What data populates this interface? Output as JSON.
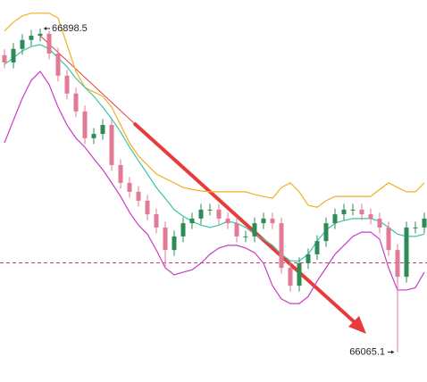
{
  "chart_data": {
    "type": "candlestick",
    "ylim": [
      65988,
      66972
    ],
    "up_color": "#2e8b57",
    "down_color": "#e07a95",
    "open": [
      66830,
      66811,
      66846,
      66869,
      66880,
      66885,
      66834,
      66777,
      66731,
      66685,
      66616,
      66627,
      66650,
      66547,
      66501,
      66478,
      66455,
      66420,
      66386,
      66328,
      66363,
      66397,
      66409,
      66432,
      66432,
      66409,
      66397,
      66363,
      66363,
      66397,
      66409,
      66397,
      66282,
      66236,
      66294,
      66317,
      66351,
      66397,
      66420,
      66432,
      66432,
      66420,
      66409,
      66386,
      66328,
      66259,
      66386,
      66386
    ],
    "high": [
      66845,
      66861,
      66884,
      66895,
      66898.5,
      66893,
      66849,
      66792,
      66746,
      66700,
      66642,
      66665,
      66665,
      66562,
      66516,
      66493,
      66470,
      66435,
      66401,
      66378,
      66412,
      66424,
      66447,
      66447,
      66447,
      66424,
      66412,
      66378,
      66412,
      66424,
      66424,
      66412,
      66297,
      66309,
      66332,
      66366,
      66412,
      66435,
      66447,
      66447,
      66447,
      66435,
      66424,
      66401,
      66343,
      66401,
      66401,
      66424
    ],
    "low": [
      66796,
      66796,
      66831,
      66854,
      66865,
      66819,
      66762,
      66716,
      66670,
      66601,
      66601,
      66612,
      66532,
      66486,
      66463,
      66440,
      66405,
      66371,
      66282,
      66313,
      66348,
      66382,
      66394,
      66417,
      66394,
      66382,
      66348,
      66348,
      66348,
      66382,
      66382,
      66267,
      66221,
      66221,
      66279,
      66302,
      66336,
      66382,
      66405,
      66417,
      66405,
      66394,
      66371,
      66313,
      66065.1,
      66244,
      66371,
      66371
    ],
    "close": [
      66811,
      66846,
      66869,
      66880,
      66885,
      66834,
      66777,
      66731,
      66685,
      66616,
      66627,
      66650,
      66547,
      66501,
      66478,
      66455,
      66420,
      66386,
      66328,
      66363,
      66397,
      66409,
      66432,
      66432,
      66409,
      66397,
      66363,
      66363,
      66397,
      66409,
      66397,
      66282,
      66236,
      66294,
      66317,
      66351,
      66397,
      66420,
      66432,
      66432,
      66420,
      66409,
      66386,
      66328,
      66259,
      66386,
      66386,
      66409
    ],
    "overlays": [
      {
        "color": "#f0b020",
        "values": [
          66892,
          66915,
          66931,
          66938,
          66938,
          66938,
          66926,
          66857,
          66788,
          66747,
          66735,
          66724,
          66696,
          66650,
          66604,
          66570,
          66547,
          66524,
          66512,
          66501,
          66489,
          66484,
          66480,
          66478,
          66478,
          66478,
          66478,
          66478,
          66471,
          66466,
          66461,
          66489,
          66501,
          66478,
          66443,
          66438,
          66455,
          66466,
          66466,
          66466,
          66466,
          66466,
          66484,
          66501,
          66489,
          66478,
          66478,
          66501
        ]
      },
      {
        "color": "#3cc4a8",
        "values": [
          66806,
          66823,
          66841,
          66852,
          66857,
          66846,
          66823,
          66800,
          66770,
          66747,
          66724,
          66696,
          66666,
          66632,
          66593,
          66558,
          66524,
          66489,
          66461,
          66432,
          66415,
          66402,
          66392,
          66386,
          66392,
          66402,
          66397,
          66386,
          66369,
          66356,
          66340,
          66317,
          66300,
          66300,
          66317,
          66351,
          66379,
          66397,
          66404,
          66409,
          66409,
          66409,
          66402,
          66386,
          66369,
          66363,
          66363,
          66369
        ]
      },
      {
        "color": "#c83cc8",
        "values": [
          66604,
          66662,
          66719,
          66765,
          66788,
          66754,
          66696,
          66650,
          66616,
          66593,
          66563,
          66535,
          66501,
          66466,
          66425,
          66392,
          66369,
          66328,
          66282,
          66264,
          66271,
          66277,
          66294,
          66317,
          66333,
          66340,
          66340,
          66333,
          66321,
          66294,
          66236,
          66202,
          66190,
          66190,
          66208,
          66248,
          66282,
          66317,
          66340,
          66363,
          66374,
          66374,
          66356,
          66282,
          66225,
          66225,
          66231,
          66271
        ]
      }
    ],
    "hline": {
      "value": 66295,
      "color": "#d04060"
    }
  }
}
